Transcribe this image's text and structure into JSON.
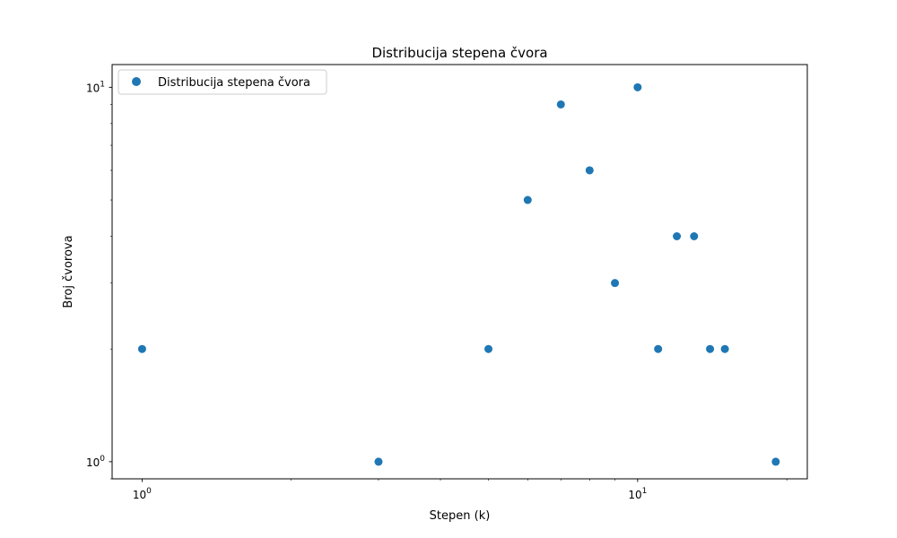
{
  "chart_data": {
    "type": "scatter",
    "title": "Distribucija stepena čvora",
    "xlabel": "Stepen (k)",
    "ylabel": "Broj čvorova",
    "x_scale": "log",
    "y_scale": "log",
    "xlim": [
      0.87,
      22
    ],
    "ylim": [
      0.9,
      11.5
    ],
    "x_ticks": [
      {
        "base": "10",
        "exp": "0",
        "value": 1
      },
      {
        "base": "10",
        "exp": "1",
        "value": 10
      }
    ],
    "y_ticks": [
      {
        "base": "10",
        "exp": "0",
        "value": 1
      },
      {
        "base": "10",
        "exp": "1",
        "value": 10
      }
    ],
    "grid": false,
    "legend_position": "top-left",
    "series": [
      {
        "name": "Distribucija stepena čvora",
        "color": "#1f77b4",
        "marker": "circle",
        "points": [
          {
            "x": 1,
            "y": 2
          },
          {
            "x": 3,
            "y": 1
          },
          {
            "x": 5,
            "y": 2
          },
          {
            "x": 6,
            "y": 5
          },
          {
            "x": 7,
            "y": 9
          },
          {
            "x": 8,
            "y": 6
          },
          {
            "x": 9,
            "y": 3
          },
          {
            "x": 10,
            "y": 10
          },
          {
            "x": 11,
            "y": 2
          },
          {
            "x": 12,
            "y": 4
          },
          {
            "x": 13,
            "y": 4
          },
          {
            "x": 14,
            "y": 2
          },
          {
            "x": 15,
            "y": 2
          },
          {
            "x": 19,
            "y": 1
          }
        ]
      }
    ]
  }
}
